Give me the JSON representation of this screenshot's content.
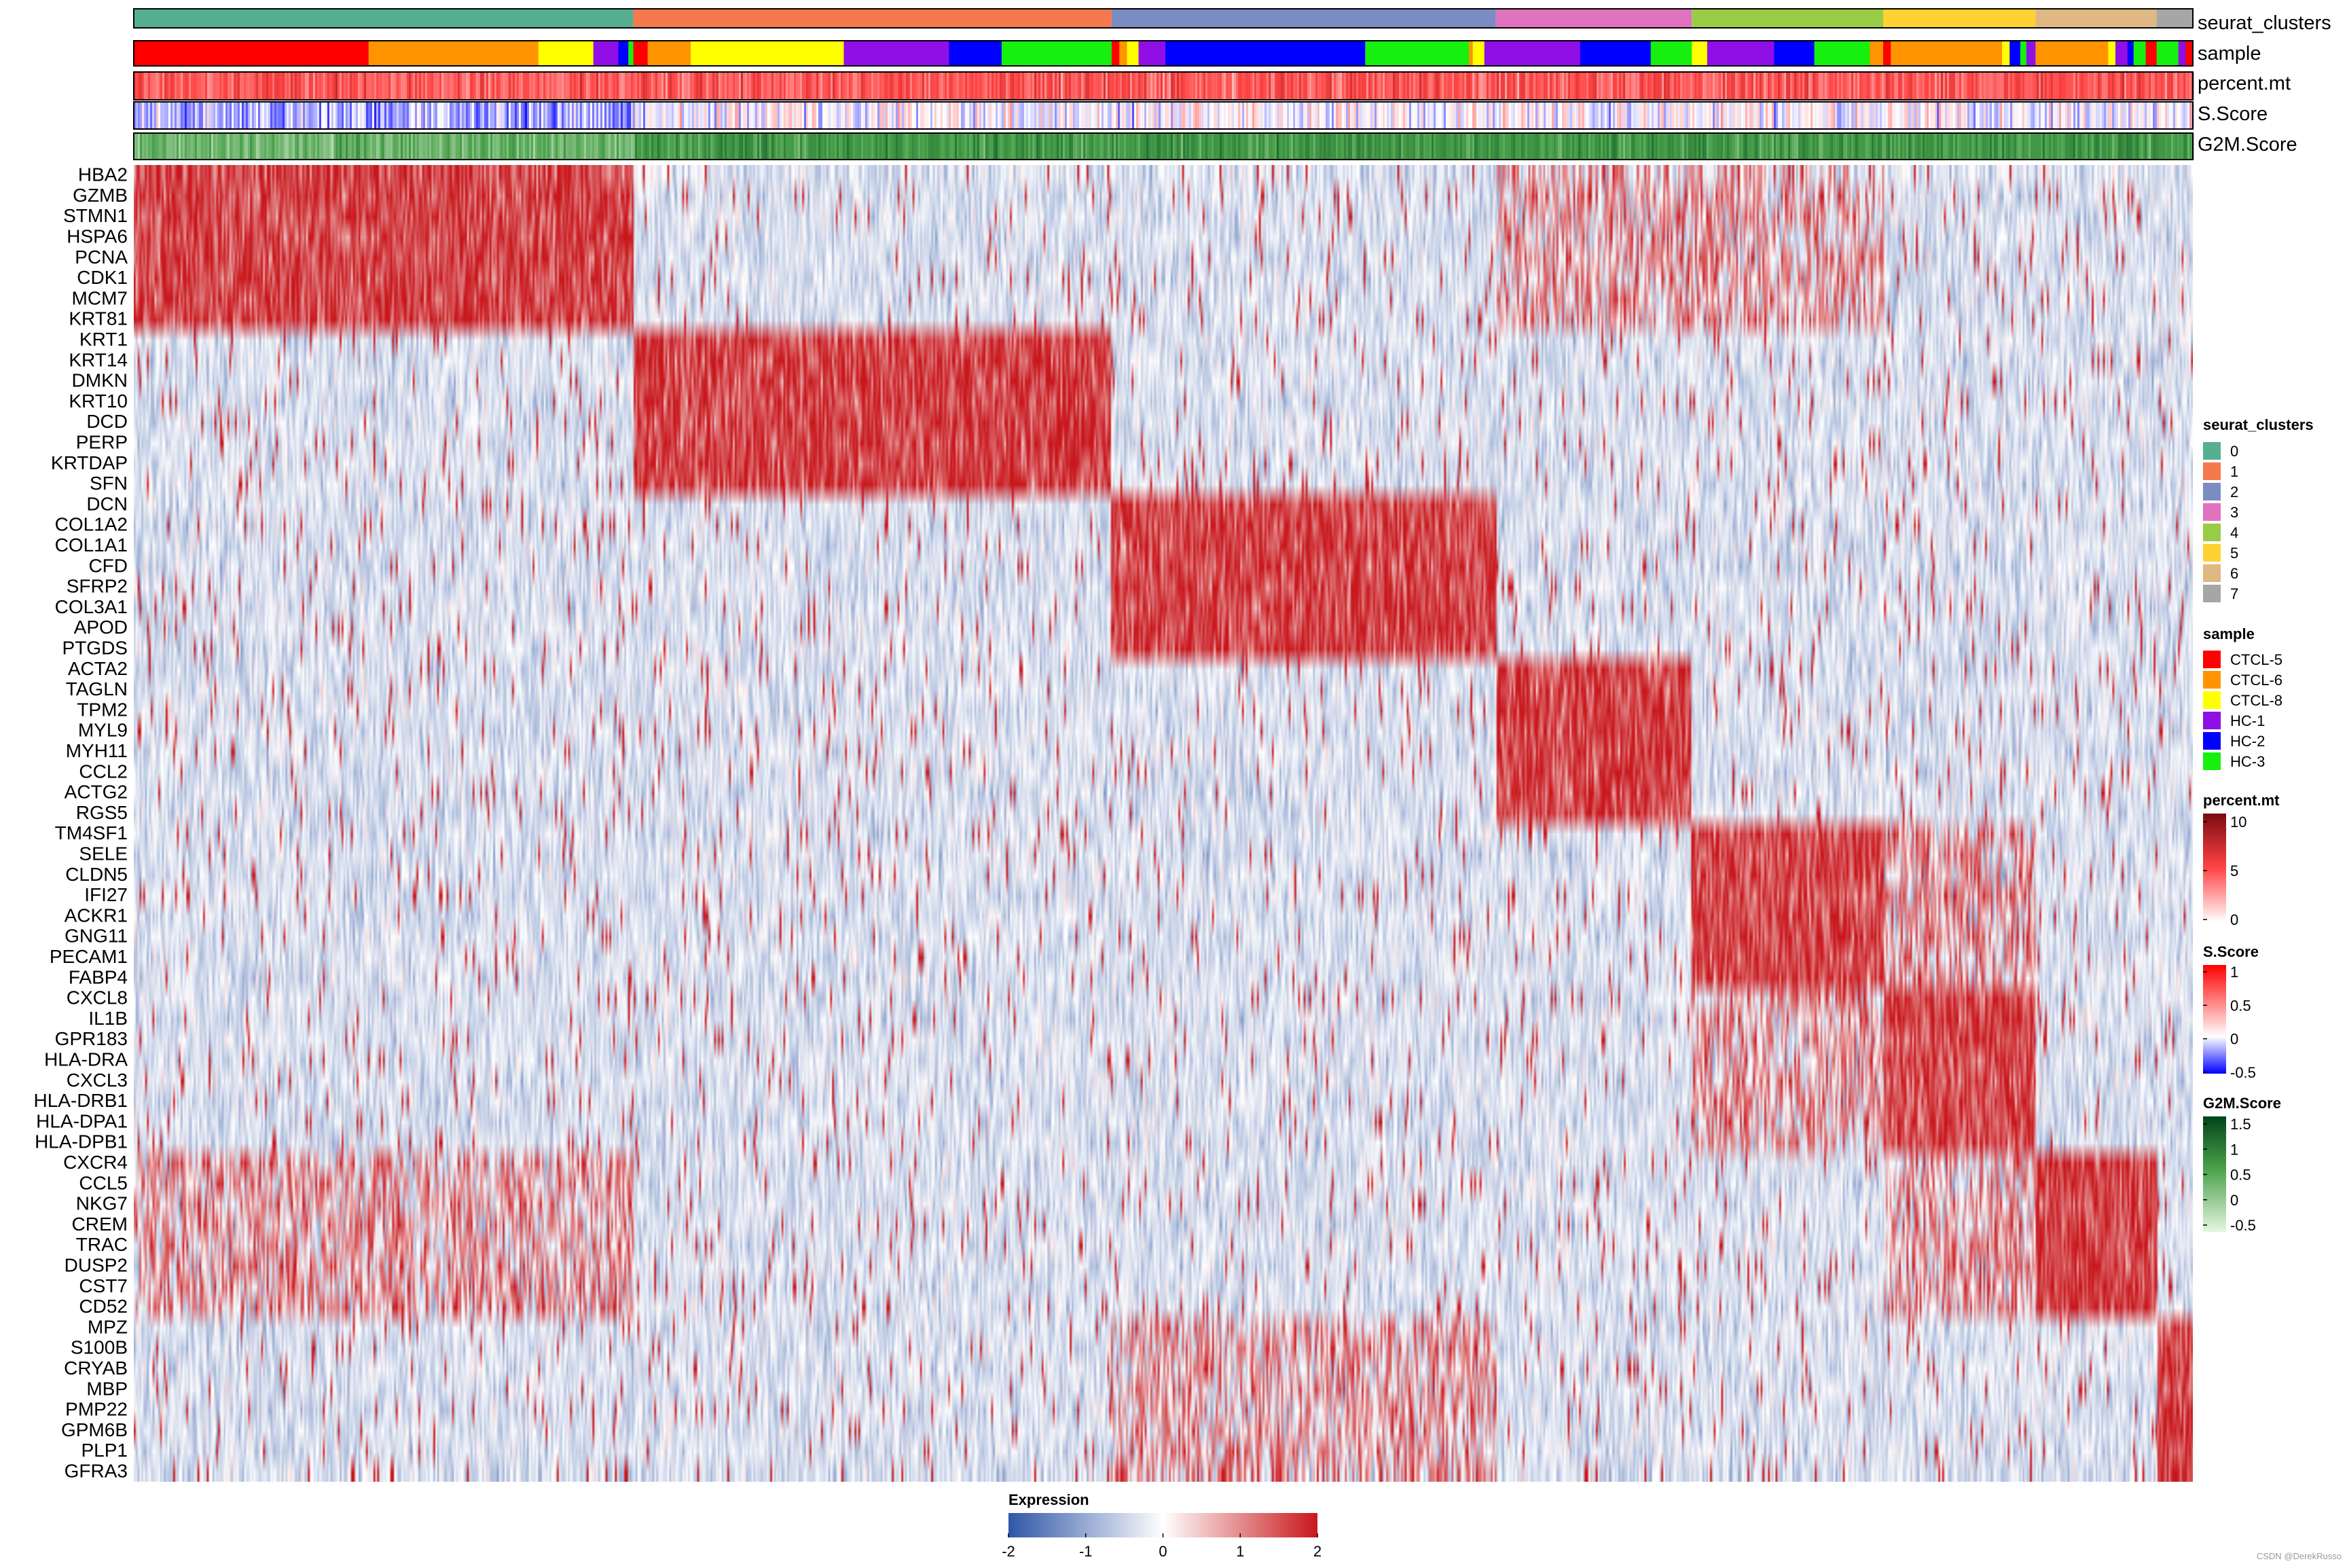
{
  "chart_data": {
    "type": "heatmap",
    "value_label": "Expression",
    "annotation_tracks": [
      "seurat_clusters",
      "sample",
      "percent.mt",
      "S.Score",
      "G2M.Score"
    ],
    "clusters": [
      {
        "id": "0",
        "color": "#56b08f",
        "cell_fraction": 0.2426
      },
      {
        "id": "1",
        "color": "#f47a4d",
        "cell_fraction": 0.2323
      },
      {
        "id": "2",
        "color": "#7b8cc1",
        "cell_fraction": 0.1866
      },
      {
        "id": "3",
        "color": "#e072be",
        "cell_fraction": 0.0952
      },
      {
        "id": "4",
        "color": "#99cc45",
        "cell_fraction": 0.0929
      },
      {
        "id": "5",
        "color": "#ffd132",
        "cell_fraction": 0.074
      },
      {
        "id": "6",
        "color": "#dfb884",
        "cell_fraction": 0.0588
      },
      {
        "id": "7",
        "color": "#a6a6a6",
        "cell_fraction": 0.0176
      }
    ],
    "samples": [
      {
        "name": "CTCL-5",
        "color": "#ff0000"
      },
      {
        "name": "CTCL-6",
        "color": "#ff9400"
      },
      {
        "name": "CTCL-8",
        "color": "#ffff00"
      },
      {
        "name": "HC-1",
        "color": "#8f0fe6"
      },
      {
        "name": "HC-2",
        "color": "#0000ff"
      },
      {
        "name": "HC-3",
        "color": "#17f00f"
      }
    ],
    "genes": [
      "HBA2",
      "GZMB",
      "STMN1",
      "HSPA6",
      "PCNA",
      "CDK1",
      "MCM7",
      "KRT81",
      "KRT1",
      "KRT14",
      "DMKN",
      "KRT10",
      "DCD",
      "PERP",
      "KRTDAP",
      "SFN",
      "DCN",
      "COL1A2",
      "COL1A1",
      "CFD",
      "SFRP2",
      "COL3A1",
      "APOD",
      "PTGDS",
      "ACTA2",
      "TAGLN",
      "TPM2",
      "MYL9",
      "MYH11",
      "CCL2",
      "ACTG2",
      "RGS5",
      "TM4SF1",
      "SELE",
      "CLDN5",
      "IFI27",
      "ACKR1",
      "GNG11",
      "PECAM1",
      "FABP4",
      "CXCL8",
      "IL1B",
      "GPR183",
      "HLA-DRA",
      "CXCL3",
      "HLA-DRB1",
      "HLA-DPA1",
      "HLA-DPB1",
      "CXCR4",
      "CCL5",
      "NKG7",
      "CREM",
      "TRAC",
      "DUSP2",
      "CST7",
      "CD52",
      "MPZ",
      "S100B",
      "CRYAB",
      "MBP",
      "PMP22",
      "GPM6B",
      "PLP1",
      "GFRA3"
    ],
    "marker_genes_by_cluster": [
      {
        "cluster": "0",
        "genes": [
          "HBA2",
          "GZMB",
          "STMN1",
          "HSPA6",
          "PCNA",
          "CDK1",
          "MCM7",
          "KRT81"
        ]
      },
      {
        "cluster": "1",
        "genes": [
          "KRT1",
          "KRT14",
          "DMKN",
          "KRT10",
          "DCD",
          "PERP",
          "KRTDAP",
          "SFN"
        ]
      },
      {
        "cluster": "2",
        "genes": [
          "DCN",
          "COL1A2",
          "COL1A1",
          "CFD",
          "SFRP2",
          "COL3A1",
          "APOD",
          "PTGDS"
        ]
      },
      {
        "cluster": "3",
        "genes": [
          "ACTA2",
          "TAGLN",
          "TPM2",
          "MYL9",
          "MYH11",
          "CCL2",
          "ACTG2",
          "RGS5"
        ]
      },
      {
        "cluster": "4",
        "genes": [
          "TM4SF1",
          "SELE",
          "CLDN5",
          "IFI27",
          "ACKR1",
          "GNG11",
          "PECAM1",
          "FABP4"
        ]
      },
      {
        "cluster": "5",
        "genes": [
          "CXCL8",
          "IL1B",
          "GPR183",
          "HLA-DRA",
          "CXCL3",
          "HLA-DRB1",
          "HLA-DPA1",
          "HLA-DPB1"
        ]
      },
      {
        "cluster": "6",
        "genes": [
          "CXCR4",
          "CCL5",
          "NKG7",
          "CREM",
          "TRAC",
          "DUSP2",
          "CST7",
          "CD52"
        ]
      },
      {
        "cluster": "7",
        "genes": [
          "MPZ",
          "S100B",
          "CRYAB",
          "MBP",
          "PMP22",
          "GPM6B",
          "PLP1",
          "GFRA3"
        ]
      }
    ],
    "expression_scale": {
      "range": [
        -2,
        2
      ],
      "ticks": [
        "-2",
        "-1",
        "0",
        "1",
        "2"
      ],
      "colors": [
        "#2f56a6",
        "#ffffff",
        "#c8171c"
      ]
    },
    "percent_mt_scale": {
      "ticks": [
        "10",
        "5",
        "0"
      ],
      "colors": [
        "#7a0c12",
        "#ff4444",
        "#ffffff"
      ]
    },
    "s_score_scale": {
      "ticks": [
        "1",
        "0.5",
        "0",
        "-0.5"
      ],
      "colors": [
        "#ff0000",
        "#ffffff",
        "#0000ff"
      ]
    },
    "g2m_score_scale": {
      "ticks": [
        "1.5",
        "1",
        "0.5",
        "0",
        "-0.5"
      ],
      "colors": [
        "#00441b",
        "#4aa14a",
        "#e5f5e0"
      ]
    }
  },
  "watermark": "CSDN @DerekRusso"
}
